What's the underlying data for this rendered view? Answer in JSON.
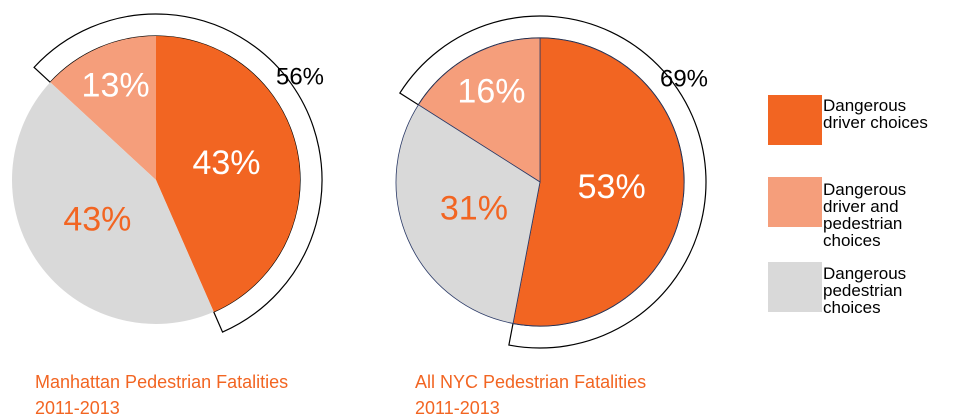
{
  "chart_data": [
    {
      "type": "pie",
      "title": "Manhattan Pedestrian Fatalities",
      "subtitle": "2011-2013",
      "categories": [
        "Dangerous driver choices",
        "Dangerous driver and pedestrian choices",
        "Dangerous pedestrian choices"
      ],
      "values": [
        43,
        13,
        43
      ],
      "value_labels": [
        "43%",
        "13%",
        "43%"
      ],
      "colors": [
        "#f26522",
        "#f59e7b",
        "#d9d9d9"
      ],
      "bracket": {
        "value": 56,
        "label": "56%"
      }
    },
    {
      "type": "pie",
      "title": "All NYC Pedestrian Fatalities",
      "subtitle": "2011-2013",
      "categories": [
        "Dangerous driver choices",
        "Dangerous driver and pedestrian choices",
        "Dangerous pedestrian choices"
      ],
      "values": [
        53,
        16,
        31
      ],
      "value_labels": [
        "53%",
        "16%",
        "31%"
      ],
      "colors": [
        "#f26522",
        "#f59e7b",
        "#d9d9d9"
      ],
      "bracket": {
        "value": 69,
        "label": "69%"
      }
    }
  ]
}
